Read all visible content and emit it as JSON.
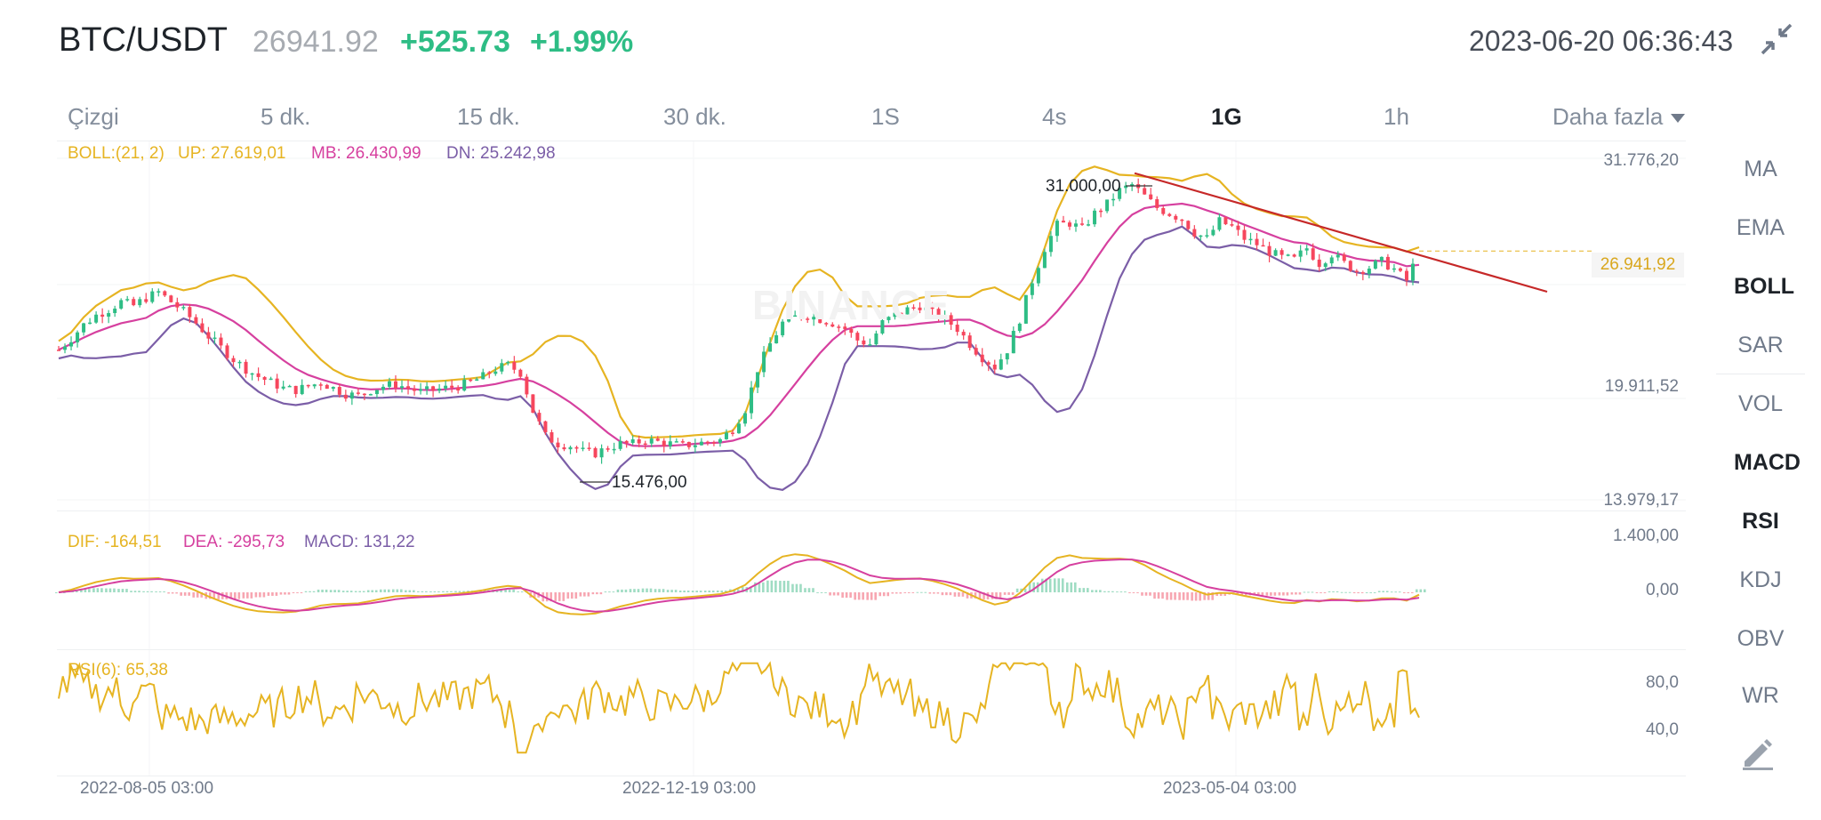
{
  "header": {
    "pair": "BTC/USDT",
    "last_price": "26941.92",
    "change": "+525.73",
    "change_pct": "+1.99%",
    "datetime": "2023-06-20 06:36:43",
    "collapse_icon": "collapse-arrows-icon"
  },
  "timeframes": [
    {
      "label": "Çizgi"
    },
    {
      "label": "5 dk."
    },
    {
      "label": "15 dk."
    },
    {
      "label": "30 dk."
    },
    {
      "label": "1S"
    },
    {
      "label": "4s"
    },
    {
      "label": "1G",
      "active": true
    },
    {
      "label": "1h"
    },
    {
      "label": "Daha fazla",
      "icon": "caret-down-icon"
    }
  ],
  "indicators": [
    {
      "label": "MA"
    },
    {
      "label": "EMA"
    },
    {
      "label": "BOLL",
      "active": true
    },
    {
      "label": "SAR"
    },
    {
      "label": "VOL"
    },
    {
      "label": "MACD",
      "active": true
    },
    {
      "label": "RSI",
      "active": true
    },
    {
      "label": "KDJ"
    },
    {
      "label": "OBV"
    },
    {
      "label": "WR"
    }
  ],
  "draw_tool_icon": "pen-draw-icon",
  "watermark": "BINANCE",
  "boll": {
    "label": "BOLL:(21, 2)",
    "up": "UP: 27.619,01",
    "mb": "MB: 26.430,99",
    "dn": "DN: 25.242,98"
  },
  "price_axis": [
    "31.776,20",
    "19.911,52",
    "13.979,17"
  ],
  "price_tag": "26.941,92",
  "annotations": {
    "high": "31.000,00",
    "low": "15.476,00"
  },
  "macd": {
    "dif": "DIF: -164,51",
    "dea": "DEA: -295,73",
    "macd": "MACD: 131,22",
    "axis": [
      "1.400,00",
      "0,00"
    ]
  },
  "rsi": {
    "label": "RSI(6): 65,38",
    "axis": [
      "80,0",
      "40,0"
    ]
  },
  "x_axis": [
    "2022-08-05 03:00",
    "2022-12-19 03:00",
    "2023-05-04 03:00"
  ],
  "colors": {
    "up": "#2ebd85",
    "down": "#f6465d",
    "boll_up": "#e6b422",
    "boll_mb": "#d6409f",
    "boll_dn": "#7b5ea7",
    "rsi": "#e6b422",
    "trend": "#c62828"
  },
  "chart_data": {
    "type": "candlestick",
    "price_axis_range": [
      13979.17,
      31776.2
    ],
    "last_price": 26941.92,
    "boll": {
      "period": 21,
      "stddev": 2,
      "up": 27619.01,
      "mb": 26430.99,
      "dn": 25242.98
    },
    "trend_line_from": 31000.0,
    "marked_high": 31000.0,
    "marked_low": 15476.0,
    "close_series": [
      21800,
      22400,
      23100,
      23600,
      23900,
      24300,
      24100,
      24500,
      24800,
      24300,
      23800,
      23200,
      22500,
      21900,
      21300,
      20800,
      20400,
      20100,
      19800,
      19700,
      19900,
      20100,
      19800,
      19500,
      19400,
      19700,
      19900,
      20000,
      19800,
      19600,
      19700,
      19800,
      19900,
      20100,
      20400,
      20800,
      21000,
      20600,
      18600,
      17300,
      16900,
      16800,
      16500,
      16400,
      16700,
      16900,
      16900,
      17100,
      17000,
      16900,
      16800,
      16900,
      17000,
      17100,
      17700,
      18700,
      20800,
      22100,
      23200,
      23500,
      23600,
      23400,
      23200,
      22900,
      22300,
      22100,
      23200,
      23600,
      23900,
      24100,
      23700,
      23400,
      22900,
      22100,
      21400,
      20900,
      21800,
      23400,
      25400,
      27100,
      28300,
      28400,
      28100,
      28900,
      29400,
      30100,
      30400,
      29800,
      29200,
      28900,
      28600,
      27900,
      27600,
      28500,
      28200,
      27600,
      27300,
      26900,
      26600,
      26500,
      27100,
      26300,
      26800,
      26300,
      25900,
      26100,
      26400,
      26000,
      25400,
      26900
    ]
  }
}
